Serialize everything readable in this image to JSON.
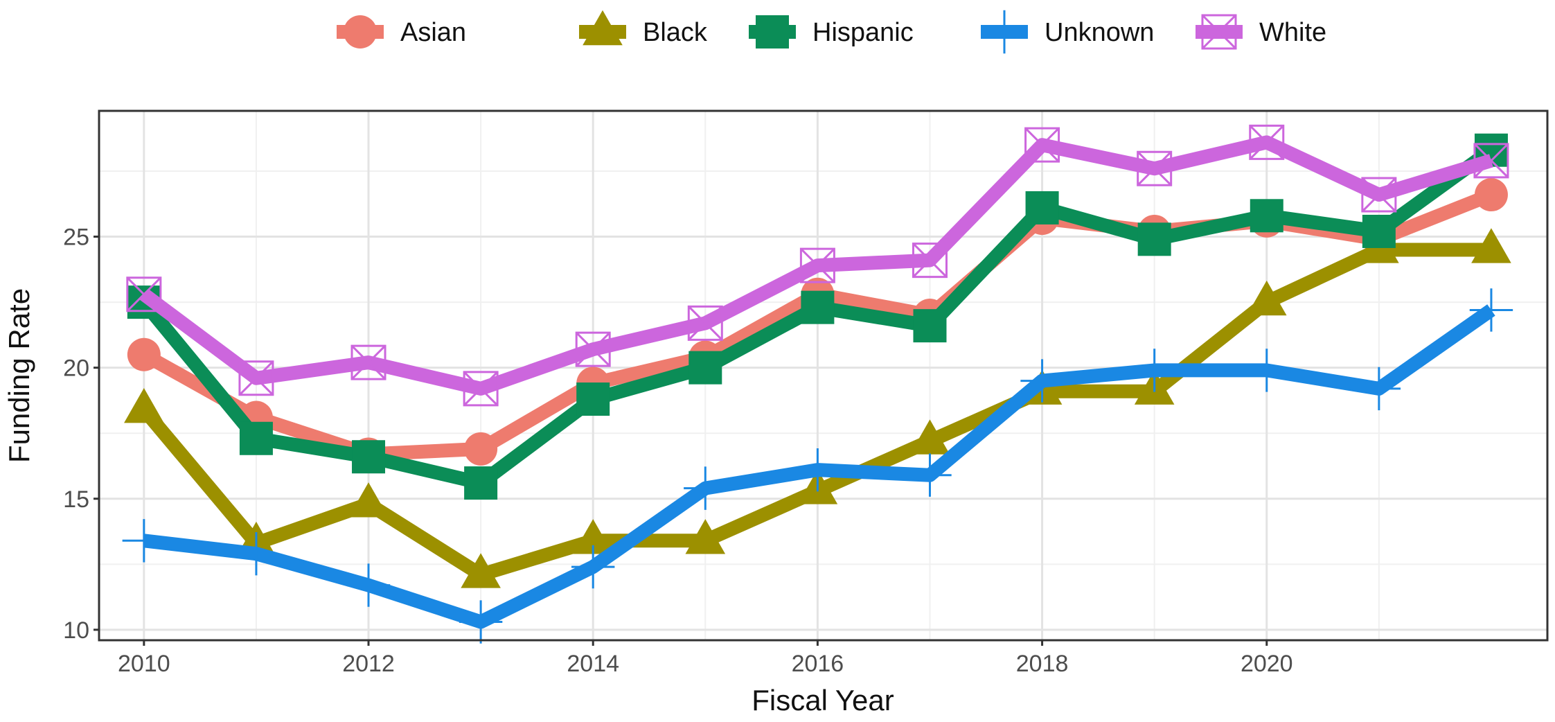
{
  "chart_data": {
    "type": "line",
    "title": "",
    "xlabel": "Fiscal Year",
    "ylabel": "Funding Rate",
    "xlim": [
      2009.6,
      2022.5
    ],
    "ylim": [
      9.6,
      29.8
    ],
    "x_ticks": [
      2010,
      2012,
      2014,
      2016,
      2018,
      2020
    ],
    "y_ticks": [
      10,
      15,
      20,
      25
    ],
    "grid": true,
    "legend_position": "top",
    "x": [
      2010,
      2011,
      2012,
      2013,
      2014,
      2015,
      2016,
      2017,
      2018,
      2019,
      2020,
      2021,
      2022
    ],
    "series": [
      {
        "name": "Asian",
        "color": "#ee7b6e",
        "marker": "circle",
        "values": [
          20.5,
          18.1,
          16.7,
          16.9,
          19.4,
          20.4,
          22.8,
          22.0,
          25.7,
          25.2,
          25.6,
          24.9,
          26.6
        ]
      },
      {
        "name": "Black",
        "color": "#9c9000",
        "marker": "triangle",
        "values": [
          18.4,
          13.3,
          14.8,
          12.1,
          13.4,
          13.4,
          15.3,
          17.2,
          19.1,
          19.1,
          22.5,
          24.5,
          24.5
        ]
      },
      {
        "name": "Hispanic",
        "color": "#0b8d57",
        "marker": "square-plus",
        "values": [
          22.5,
          17.3,
          16.6,
          15.6,
          18.8,
          20.0,
          22.3,
          21.6,
          26.1,
          24.9,
          25.8,
          25.2,
          28.3
        ]
      },
      {
        "name": "Unknown",
        "color": "#1a88e3",
        "marker": "cross",
        "values": [
          13.4,
          12.9,
          11.7,
          10.3,
          12.4,
          15.4,
          16.1,
          15.9,
          19.5,
          19.9,
          19.9,
          19.2,
          22.2
        ]
      },
      {
        "name": "White",
        "color": "#cc66dd",
        "marker": "square-x",
        "values": [
          22.8,
          19.6,
          20.2,
          19.2,
          20.7,
          21.7,
          23.9,
          24.1,
          28.5,
          27.6,
          28.6,
          26.6,
          27.9
        ]
      }
    ]
  }
}
